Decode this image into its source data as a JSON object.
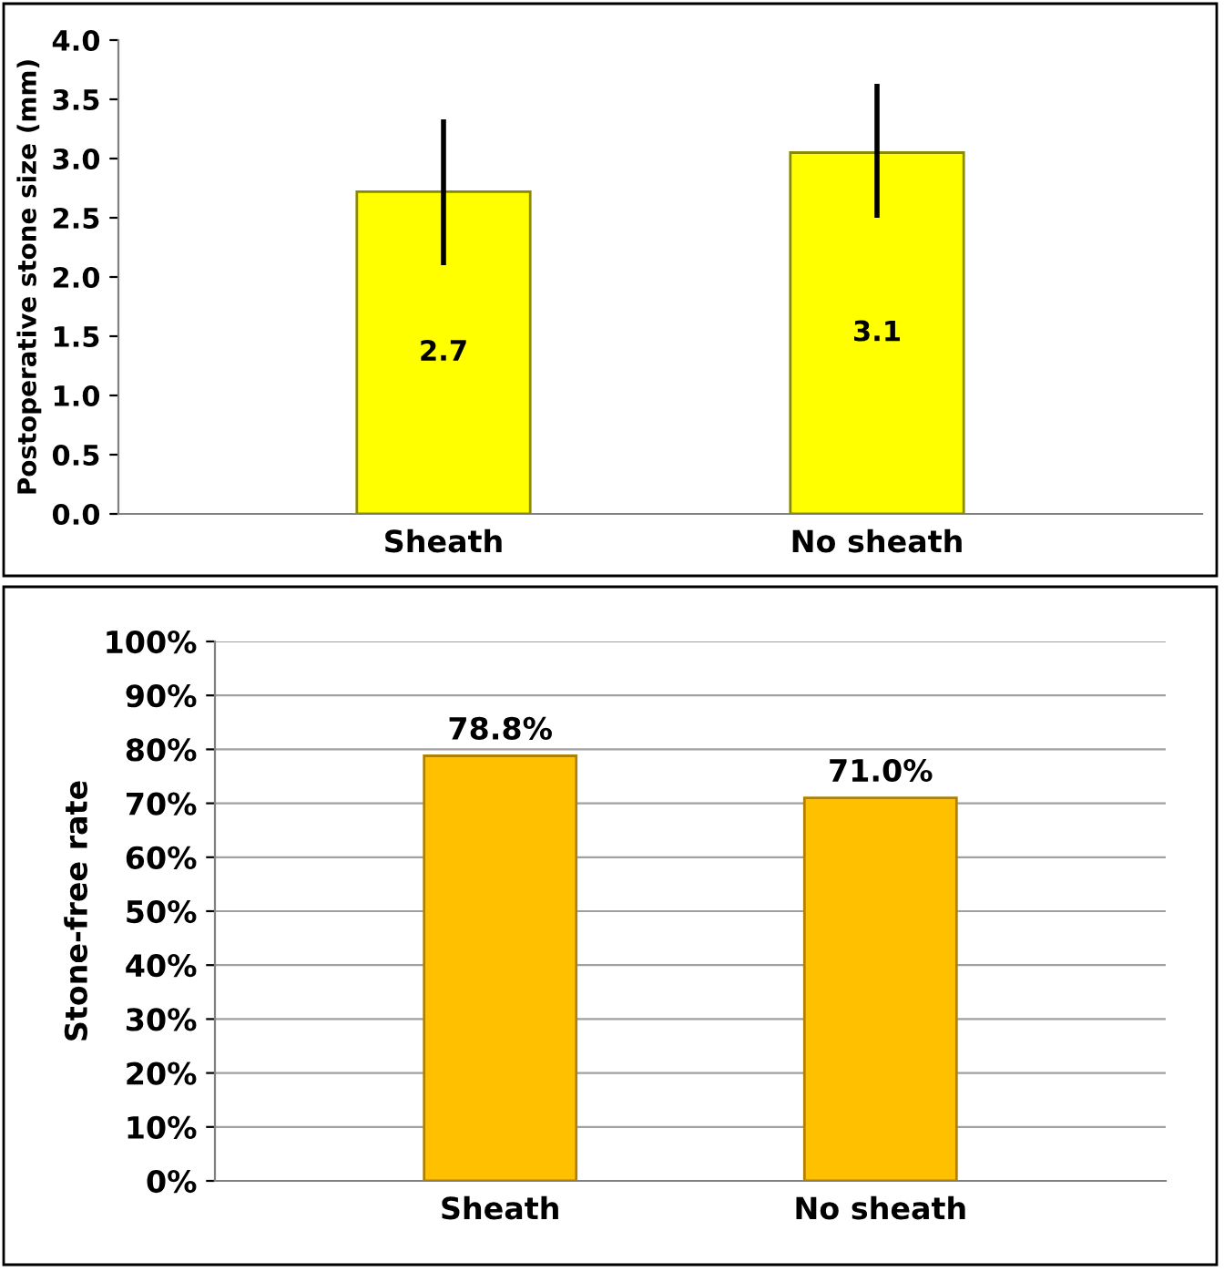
{
  "chart_data": [
    {
      "type": "bar",
      "ylabel": "Postoperative stone size (mm)",
      "categories": [
        "Sheath",
        "No sheath"
      ],
      "values": [
        2.72,
        3.05
      ],
      "value_labels": [
        "2.7",
        "3.1"
      ],
      "errors": [
        [
          2.1,
          3.33
        ],
        [
          2.5,
          3.63
        ]
      ],
      "color": "#ffff00",
      "ylim": [
        0,
        4
      ],
      "yticks": [
        {
          "value": 0,
          "label": "0.0"
        },
        {
          "value": 0.5,
          "label": "0.5"
        },
        {
          "value": 1,
          "label": "1.0"
        },
        {
          "value": 1.5,
          "label": "1.5"
        },
        {
          "value": 2,
          "label": "2.0"
        },
        {
          "value": 2.5,
          "label": "2.5"
        },
        {
          "value": 3,
          "label": "3.0"
        },
        {
          "value": 3.5,
          "label": "3.5"
        },
        {
          "value": 4,
          "label": "4.0"
        }
      ],
      "grid": false
    },
    {
      "type": "bar",
      "ylabel": "Stone-free rate",
      "categories": [
        "Sheath",
        "No sheath"
      ],
      "values": [
        78.8,
        71.0
      ],
      "value_labels": [
        "78.8%",
        "71.0%"
      ],
      "color": "#ffc000",
      "ylim": [
        0,
        100
      ],
      "yticks": [
        {
          "value": 0,
          "label": "0%"
        },
        {
          "value": 10,
          "label": "10%"
        },
        {
          "value": 20,
          "label": "20%"
        },
        {
          "value": 30,
          "label": "30%"
        },
        {
          "value": 40,
          "label": "40%"
        },
        {
          "value": 50,
          "label": "50%"
        },
        {
          "value": 60,
          "label": "60%"
        },
        {
          "value": 70,
          "label": "70%"
        },
        {
          "value": 80,
          "label": "80%"
        },
        {
          "value": 90,
          "label": "90%"
        },
        {
          "value": 100,
          "label": "100%"
        }
      ],
      "grid": "y"
    }
  ]
}
